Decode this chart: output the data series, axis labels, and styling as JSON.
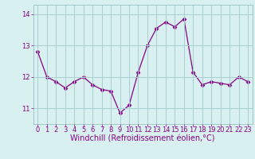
{
  "x": [
    0,
    1,
    2,
    3,
    4,
    5,
    6,
    7,
    8,
    9,
    10,
    11,
    12,
    13,
    14,
    15,
    16,
    17,
    18,
    19,
    20,
    21,
    22,
    23
  ],
  "y": [
    12.8,
    12.0,
    11.85,
    11.65,
    11.85,
    12.0,
    11.75,
    11.6,
    11.55,
    10.85,
    11.1,
    12.15,
    13.0,
    13.55,
    13.75,
    13.6,
    13.85,
    12.15,
    11.75,
    11.85,
    11.8,
    11.75,
    12.0,
    11.85
  ],
  "line_color": "#880088",
  "marker": "D",
  "marker_size": 2.5,
  "bg_color": "#d8f0f0",
  "grid_color": "#a8d0d0",
  "xlabel": "Windchill (Refroidissement éolien,°C)",
  "xlabel_color": "#880088",
  "ylim": [
    10.5,
    14.3
  ],
  "xlim": [
    -0.5,
    23.5
  ],
  "yticks": [
    11,
    12,
    13,
    14
  ],
  "xticks": [
    0,
    1,
    2,
    3,
    4,
    5,
    6,
    7,
    8,
    9,
    10,
    11,
    12,
    13,
    14,
    15,
    16,
    17,
    18,
    19,
    20,
    21,
    22,
    23
  ],
  "tick_fontsize": 6.0,
  "xlabel_fontsize": 7.0
}
